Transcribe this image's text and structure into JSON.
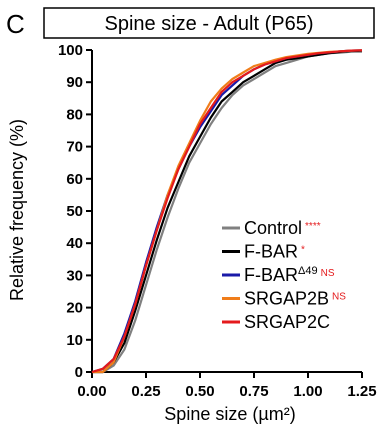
{
  "panel_letter": "C",
  "chart_data": {
    "type": "line",
    "title": "Spine size - Adult (P65)",
    "xlabel": "Spine size (µm²)",
    "ylabel": "Relative frequency (%)",
    "xlim": [
      0,
      1.25
    ],
    "ylim": [
      0,
      100
    ],
    "x_ticks": [
      "0.00",
      "0.25",
      "0.50",
      "0.75",
      "1.00",
      "1.25"
    ],
    "y_ticks": [
      "0",
      "10",
      "20",
      "30",
      "40",
      "50",
      "60",
      "70",
      "80",
      "90",
      "100"
    ],
    "grid": false,
    "legend_position": "bottom-right",
    "series": [
      {
        "name": "Control",
        "superscript": "",
        "significance": "****",
        "color": "#808080",
        "x": [
          0.0,
          0.05,
          0.1,
          0.15,
          0.2,
          0.25,
          0.3,
          0.35,
          0.4,
          0.45,
          0.5,
          0.55,
          0.6,
          0.65,
          0.7,
          0.75,
          0.8,
          0.85,
          0.9,
          0.95,
          1.0,
          1.05,
          1.1,
          1.15,
          1.2,
          1.25
        ],
        "y": [
          0,
          0,
          2,
          7,
          16,
          27,
          38,
          48,
          57,
          65,
          71,
          77,
          82,
          86,
          89,
          91,
          93,
          95,
          96,
          97,
          98,
          98.5,
          99,
          99.2,
          99.5,
          99.5
        ]
      },
      {
        "name": "F-BAR",
        "superscript": "",
        "significance": "*",
        "color": "#000000",
        "x": [
          0.0,
          0.05,
          0.1,
          0.15,
          0.2,
          0.25,
          0.3,
          0.35,
          0.4,
          0.45,
          0.5,
          0.55,
          0.6,
          0.65,
          0.7,
          0.75,
          0.8,
          0.85,
          0.9,
          0.95,
          1.0,
          1.05,
          1.1,
          1.15,
          1.2,
          1.25
        ],
        "y": [
          0,
          0,
          3,
          9,
          19,
          30,
          41,
          51,
          59,
          67,
          73,
          79,
          84,
          87,
          90,
          92,
          94,
          96,
          97,
          97.5,
          98,
          98.5,
          99,
          99.4,
          99.7,
          99.8
        ]
      },
      {
        "name": "F-BAR",
        "superscript": "Δ49",
        "significance": "NS",
        "color": "#1a1aa8",
        "x": [
          0.0,
          0.05,
          0.1,
          0.15,
          0.2,
          0.25,
          0.3,
          0.35,
          0.4,
          0.45,
          0.5,
          0.55,
          0.6,
          0.65,
          0.7,
          0.75,
          0.8,
          0.85,
          0.9,
          0.95,
          1.0,
          1.05,
          1.1,
          1.15,
          1.2,
          1.25
        ],
        "y": [
          0,
          1,
          4,
          12,
          22,
          34,
          45,
          55,
          63,
          70,
          76,
          81,
          86,
          89,
          92,
          94,
          95.5,
          96.5,
          97.5,
          98,
          98.5,
          99,
          99.3,
          99.6,
          99.8,
          99.9
        ]
      },
      {
        "name": "SRGAP2B",
        "superscript": "",
        "significance": "NS",
        "color": "#f07d1a",
        "x": [
          0.0,
          0.05,
          0.1,
          0.15,
          0.2,
          0.25,
          0.3,
          0.35,
          0.4,
          0.45,
          0.5,
          0.55,
          0.6,
          0.65,
          0.7,
          0.75,
          0.8,
          0.85,
          0.9,
          0.95,
          1.0,
          1.05,
          1.1,
          1.15,
          1.2,
          1.25
        ],
        "y": [
          0,
          0,
          3,
          11,
          21,
          33,
          44,
          55,
          64,
          71,
          78,
          84,
          88,
          91,
          93,
          95,
          96,
          97,
          97.8,
          98.3,
          98.8,
          99.1,
          99.4,
          99.6,
          99.8,
          99.9
        ]
      },
      {
        "name": "SRGAP2C",
        "superscript": "",
        "significance": "",
        "color": "#e41a1c",
        "x": [
          0.0,
          0.05,
          0.1,
          0.15,
          0.2,
          0.25,
          0.3,
          0.35,
          0.4,
          0.45,
          0.5,
          0.55,
          0.6,
          0.65,
          0.7,
          0.75,
          0.8,
          0.85,
          0.9,
          0.95,
          1.0,
          1.05,
          1.1,
          1.15,
          1.2,
          1.25
        ],
        "y": [
          0,
          1,
          4,
          11,
          21,
          33,
          44,
          54,
          63,
          70,
          77,
          82,
          87,
          90,
          92,
          94,
          95.5,
          96.5,
          97.5,
          98,
          98.5,
          99,
          99.3,
          99.6,
          99.8,
          99.9
        ]
      }
    ]
  }
}
